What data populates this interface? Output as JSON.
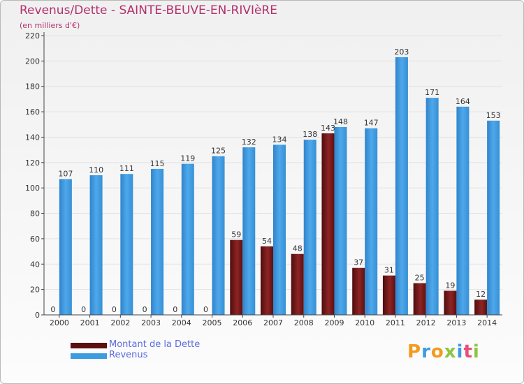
{
  "header": {
    "title": "Revenus/Dette - SAINTE-BEUVE-EN-RIVIèRE",
    "subtitle": "(en milliers d'€)"
  },
  "legend": {
    "items": [
      {
        "label": "Montant de la Dette",
        "color": "#7a1a1a"
      },
      {
        "label": "Revenus",
        "color": "#3d9be0"
      }
    ]
  },
  "logo": {
    "text": "Proxiti"
  },
  "chart_data": {
    "type": "bar",
    "title": "Revenus/Dette - SAINTE-BEUVE-EN-RIVIèRE",
    "subtitle": "(en milliers d'€)",
    "xlabel": "",
    "ylabel": "",
    "ylim": [
      0,
      220
    ],
    "yticks": [
      0,
      20,
      40,
      60,
      80,
      100,
      120,
      140,
      160,
      180,
      200,
      220
    ],
    "grid": true,
    "legend_position": "bottom-left",
    "categories": [
      "2000",
      "2001",
      "2002",
      "2003",
      "2004",
      "2005",
      "2006",
      "2007",
      "2008",
      "2009",
      "2010",
      "2011",
      "2012",
      "2013",
      "2014"
    ],
    "series": [
      {
        "name": "Montant de la Dette",
        "color": "#7a1a1a",
        "values": [
          0,
          0,
          0,
          0,
          0,
          0,
          59,
          54,
          48,
          143,
          37,
          31,
          25,
          19,
          12
        ]
      },
      {
        "name": "Revenus",
        "color": "#3d9be0",
        "values": [
          107,
          110,
          111,
          115,
          119,
          125,
          132,
          134,
          138,
          148,
          147,
          203,
          171,
          164,
          153
        ]
      }
    ]
  }
}
